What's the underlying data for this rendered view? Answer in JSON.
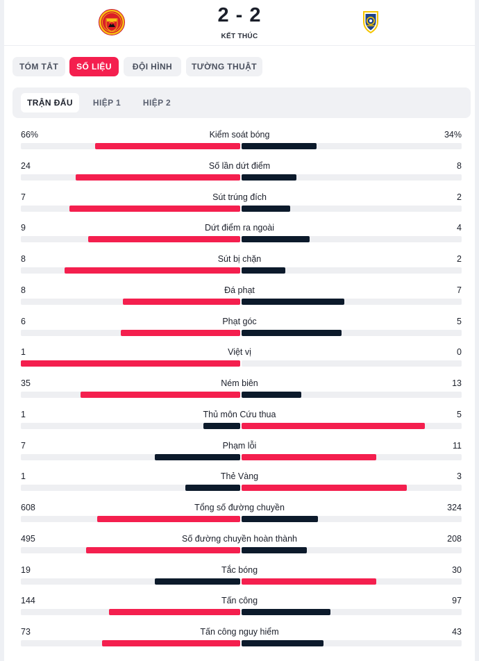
{
  "header": {
    "score": "2 - 2",
    "status": "KẾT THÚC",
    "home_crest_icon": "manchester-united-crest-icon",
    "away_crest_icon": "leeds-united-crest-icon"
  },
  "tabs": [
    {
      "label": "TÓM TẮT",
      "active": false
    },
    {
      "label": "SỐ LIỆU",
      "active": true
    },
    {
      "label": "ĐỘI HÌNH",
      "active": false
    },
    {
      "label": "TƯỜNG THUẬT",
      "active": false
    }
  ],
  "periods": [
    {
      "label": "TRẬN ĐẤU",
      "active": true
    },
    {
      "label": "HIỆP 1",
      "active": false
    },
    {
      "label": "HIỆP 2",
      "active": false
    }
  ],
  "colors": {
    "accent": "#f41f4e",
    "dark": "#0c1a2b",
    "track": "#eeeff2"
  },
  "stats": [
    {
      "label": "Kiểm soát bóng",
      "home": "66%",
      "away": "34%",
      "home_value": 66,
      "away_value": 34
    },
    {
      "label": "Số lần dứt điểm",
      "home": "24",
      "away": "8",
      "home_value": 24,
      "away_value": 8
    },
    {
      "label": "Sút trúng đích",
      "home": "7",
      "away": "2",
      "home_value": 7,
      "away_value": 2
    },
    {
      "label": "Dứt điểm ra ngoài",
      "home": "9",
      "away": "4",
      "home_value": 9,
      "away_value": 4
    },
    {
      "label": "Sút bị chặn",
      "home": "8",
      "away": "2",
      "home_value": 8,
      "away_value": 2
    },
    {
      "label": "Đá phạt",
      "home": "8",
      "away": "7",
      "home_value": 8,
      "away_value": 7
    },
    {
      "label": "Phạt góc",
      "home": "6",
      "away": "5",
      "home_value": 6,
      "away_value": 5
    },
    {
      "label": "Việt vị",
      "home": "1",
      "away": "0",
      "home_value": 1,
      "away_value": 0
    },
    {
      "label": "Ném biên",
      "home": "35",
      "away": "13",
      "home_value": 35,
      "away_value": 13
    },
    {
      "label": "Thủ môn Cứu thua",
      "home": "1",
      "away": "5",
      "home_value": 1,
      "away_value": 5
    },
    {
      "label": "Phạm lỗi",
      "home": "7",
      "away": "11",
      "home_value": 7,
      "away_value": 11
    },
    {
      "label": "Thẻ Vàng",
      "home": "1",
      "away": "3",
      "home_value": 1,
      "away_value": 3
    },
    {
      "label": "Tổng số đường chuyền",
      "home": "608",
      "away": "324",
      "home_value": 608,
      "away_value": 324
    },
    {
      "label": "Số đường chuyền hoàn thành",
      "home": "495",
      "away": "208",
      "home_value": 495,
      "away_value": 208
    },
    {
      "label": "Tắc bóng",
      "home": "19",
      "away": "30",
      "home_value": 19,
      "away_value": 30
    },
    {
      "label": "Tấn công",
      "home": "144",
      "away": "97",
      "home_value": 144,
      "away_value": 97
    },
    {
      "label": "Tấn công nguy hiểm",
      "home": "73",
      "away": "43",
      "home_value": 73,
      "away_value": 43
    }
  ]
}
